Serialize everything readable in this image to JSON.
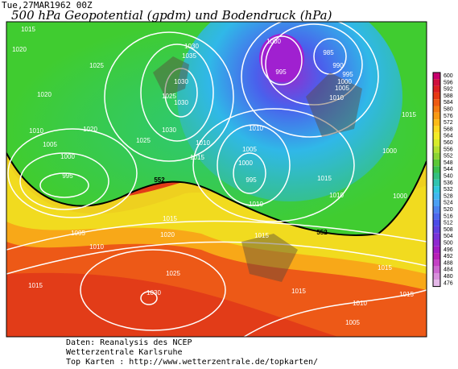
{
  "header": {
    "date": "Tue,27MAR1962 00Z",
    "title": "500 hPa Geopotential (gpdm) und Bodendruck (hPa)"
  },
  "isobar_labels": [
    "1015",
    "1020",
    "1025",
    "1030",
    "1035",
    "1030",
    "1025",
    "1030",
    "1020",
    "1010",
    "1005",
    "1020",
    "1025",
    "1030",
    "1015",
    "1010",
    "1000",
    "995",
    "985",
    "990",
    "995",
    "1000",
    "1005",
    "1010",
    "1010",
    "1005",
    "1000",
    "995",
    "1015",
    "1010",
    "1000",
    "1015",
    "1000",
    "995",
    "1000",
    "1005",
    "1010",
    "1015",
    "1015",
    "1020",
    "1025",
    "1010",
    "1015",
    "1015",
    "1030",
    "1015",
    "1010",
    "1015",
    "1005"
  ],
  "contour_labels": [
    "552",
    "552"
  ],
  "colorbar": {
    "labels": [
      600,
      596,
      592,
      588,
      584,
      580,
      576,
      572,
      568,
      564,
      560,
      556,
      552,
      548,
      544,
      540,
      536,
      532,
      528,
      524,
      520,
      516,
      512,
      508,
      504,
      500,
      496,
      492,
      488,
      484,
      480,
      476
    ],
    "colors": [
      "#c8006e",
      "#d0103c",
      "#dc2020",
      "#e63a14",
      "#ee5a10",
      "#f47a10",
      "#f89a14",
      "#fcba18",
      "#fcd820",
      "#f4ec28",
      "#d8ec2c",
      "#b4e030",
      "#8cd434",
      "#5cc838",
      "#3cc050",
      "#34c080",
      "#30c4b0",
      "#30c8dc",
      "#40b8f0",
      "#4ca0f4",
      "#4c84f0",
      "#4c68ec",
      "#4c4ce8",
      "#6040e0",
      "#7834d8",
      "#9028d0",
      "#a41cc4",
      "#b820b8",
      "#c440c4",
      "#cc68d0",
      "#d890dc",
      "#e4b8e8"
    ]
  },
  "footer": {
    "line1": "Daten: Reanalysis des NCEP",
    "line2": "Wetterzentrale Karlsruhe",
    "line3": "Top Karten :  http://www.wetterzentrale.de/topkarten/"
  }
}
